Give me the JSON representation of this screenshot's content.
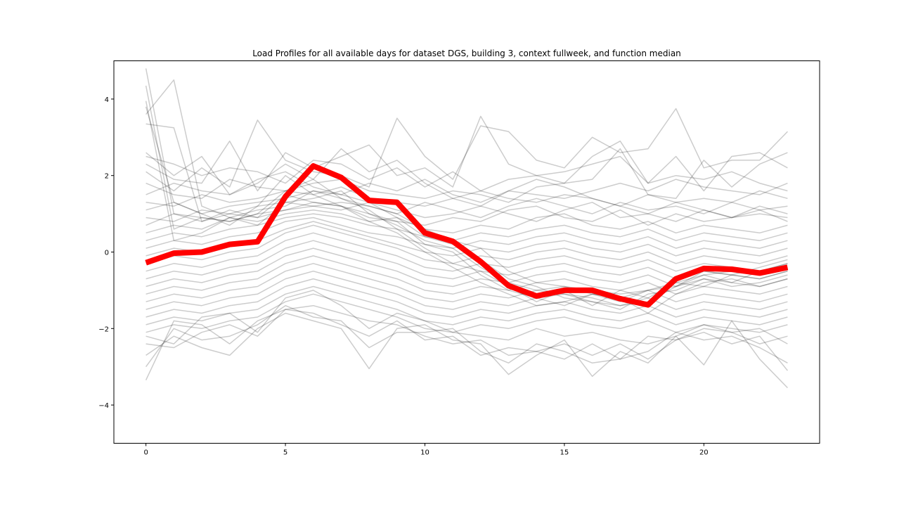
{
  "chart_data": {
    "type": "line",
    "title": "Load Profiles for all available days for dataset DGS, building 3, context fullweek, and function median",
    "xlabel": "",
    "ylabel": "",
    "xlim": [
      -1.15,
      24.15
    ],
    "ylim": [
      -5,
      5
    ],
    "x_ticks": [
      0,
      5,
      10,
      15,
      20
    ],
    "x_tick_labels": [
      "0",
      "5",
      "10",
      "15",
      "20"
    ],
    "y_ticks": [
      4,
      2,
      0,
      -2,
      -4
    ],
    "y_tick_labels": [
      "4",
      "2",
      "0",
      "−2",
      "−4"
    ],
    "grid": false,
    "x": [
      0,
      1,
      2,
      3,
      4,
      5,
      6,
      7,
      8,
      9,
      10,
      11,
      12,
      13,
      14,
      15,
      16,
      17,
      18,
      19,
      20,
      21,
      22,
      23
    ],
    "series": [
      {
        "role": "median",
        "color": "#ff0000",
        "values": [
          -0.28,
          -0.03,
          0.0,
          0.2,
          0.27,
          1.45,
          2.25,
          1.95,
          1.35,
          1.3,
          0.5,
          0.28,
          -0.25,
          -0.88,
          -1.15,
          -1.0,
          -1.0,
          -1.22,
          -1.38,
          -0.7,
          -0.43,
          -0.45,
          -0.55,
          -0.4
        ]
      }
    ],
    "background_profiles": {
      "color": "#000000",
      "opacity": 0.2,
      "lines": [
        [
          4.8,
          1.0,
          0.8,
          1.1,
          0.9,
          1.5,
          1.3,
          1.2,
          0.9,
          0.8,
          0.2,
          0.0,
          -0.6,
          -1.0,
          -1.2,
          -1.4,
          -1.1,
          -1.3,
          -1.0,
          -0.9,
          -0.6,
          -0.8,
          -0.5,
          -0.3
        ],
        [
          4.35,
          0.6,
          0.9,
          0.8,
          1.0,
          1.6,
          1.9,
          1.4,
          1.1,
          0.6,
          0.1,
          -0.3,
          -0.5,
          -0.9,
          -1.3,
          -1.0,
          -1.4,
          -1.0,
          -1.2,
          -0.8,
          -0.9,
          -0.6,
          -0.7,
          -0.5
        ],
        [
          3.95,
          0.3,
          0.5,
          0.9,
          1.1,
          1.2,
          1.6,
          1.5,
          1.3,
          0.9,
          0.4,
          0.2,
          -0.2,
          -0.7,
          -0.9,
          -1.2,
          -1.3,
          -1.5,
          -1.1,
          -1.0,
          -0.7,
          -0.9,
          -0.8,
          -0.6
        ],
        [
          3.8,
          1.3,
          1.0,
          0.7,
          1.2,
          2.0,
          1.5,
          1.2,
          0.8,
          0.5,
          0.0,
          -0.4,
          -0.8,
          -1.1,
          -1.4,
          -1.3,
          -1.1,
          -1.2,
          -1.6,
          -1.1,
          -0.8,
          -0.7,
          -0.9,
          -0.7
        ],
        [
          3.6,
          4.5,
          1.2,
          0.9,
          0.7,
          1.3,
          1.4,
          1.6,
          1.0,
          0.7,
          0.3,
          0.1,
          -0.4,
          -0.8,
          -1.0,
          -1.1,
          -1.2,
          -1.4,
          -1.3,
          -0.9,
          -0.5,
          -0.6,
          -0.4,
          -0.2
        ],
        [
          3.35,
          3.25,
          0.8,
          1.0,
          0.9,
          1.1,
          1.2,
          1.3,
          1.2,
          1.0,
          0.6,
          0.3,
          0.1,
          -0.5,
          -0.8,
          -0.9,
          -1.0,
          -1.1,
          -1.0,
          -0.8,
          -0.6,
          -0.5,
          -0.6,
          -0.4
        ],
        [
          2.6,
          2.0,
          2.5,
          1.5,
          1.8,
          2.3,
          1.9,
          2.7,
          2.1,
          2.4,
          1.8,
          1.4,
          1.2,
          1.6,
          1.9,
          1.7,
          1.4,
          1.2,
          1.0,
          1.3,
          1.1,
          0.9,
          1.2,
          1.0
        ],
        [
          2.5,
          2.3,
          2.0,
          2.2,
          2.1,
          1.8,
          2.4,
          2.3,
          1.9,
          2.2,
          1.7,
          2.1,
          1.6,
          1.9,
          2.0,
          2.1,
          2.3,
          2.5,
          1.8,
          2.0,
          1.9,
          2.1,
          1.8,
          1.6
        ],
        [
          2.3,
          1.9,
          1.8,
          2.9,
          1.6,
          2.6,
          2.2,
          2.5,
          2.8,
          2.0,
          2.2,
          1.7,
          3.55,
          2.3,
          2.0,
          1.8,
          2.5,
          2.9,
          1.8,
          2.5,
          1.6,
          2.5,
          2.6,
          2.2
        ],
        [
          2.1,
          1.6,
          2.2,
          1.7,
          3.45,
          2.4,
          2.1,
          2.0,
          1.7,
          3.5,
          2.5,
          1.9,
          3.3,
          3.15,
          2.4,
          2.2,
          3.0,
          2.6,
          2.7,
          3.75,
          2.2,
          2.4,
          2.4,
          3.15
        ],
        [
          1.8,
          1.5,
          1.4,
          1.9,
          1.7,
          1.6,
          1.8,
          1.9,
          1.6,
          1.5,
          1.4,
          1.6,
          1.5,
          1.3,
          1.7,
          1.8,
          1.9,
          2.7,
          1.5,
          1.4,
          2.4,
          1.7,
          2.3,
          2.6
        ],
        [
          1.5,
          1.8,
          1.6,
          1.5,
          1.9,
          2.1,
          1.7,
          1.5,
          1.8,
          1.6,
          1.9,
          1.5,
          1.3,
          1.6,
          1.5,
          1.4,
          1.6,
          1.8,
          1.6,
          1.9,
          1.7,
          1.6,
          1.5,
          1.8
        ],
        [
          1.3,
          1.2,
          1.5,
          1.3,
          1.4,
          1.6,
          1.5,
          1.7,
          1.4,
          1.3,
          1.2,
          1.4,
          1.6,
          1.4,
          1.3,
          1.5,
          1.4,
          1.2,
          1.5,
          1.3,
          1.4,
          1.3,
          1.6,
          1.4
        ],
        [
          1.1,
          1.3,
          1.0,
          1.2,
          1.3,
          1.4,
          1.6,
          1.4,
          1.2,
          1.0,
          1.3,
          1.1,
          0.9,
          1.2,
          1.4,
          1.2,
          1.0,
          1.3,
          1.1,
          1.2,
          1.0,
          1.3,
          1.1,
          1.2
        ],
        [
          0.9,
          0.8,
          1.1,
          1.0,
          1.2,
          1.3,
          1.2,
          1.1,
          1.3,
          1.1,
          0.9,
          1.0,
          1.2,
          1.0,
          0.8,
          1.1,
          1.3,
          0.9,
          1.0,
          0.8,
          1.1,
          0.9,
          1.0,
          0.9
        ],
        [
          0.7,
          1.0,
          0.9,
          0.8,
          1.0,
          1.1,
          1.3,
          1.2,
          1.0,
          0.8,
          0.7,
          0.9,
          0.8,
          1.1,
          1.2,
          0.9,
          0.8,
          1.1,
          0.7,
          1.0,
          0.8,
          0.9,
          1.1,
          0.8
        ],
        [
          0.5,
          0.7,
          0.6,
          0.9,
          0.8,
          1.0,
          1.1,
          1.0,
          0.8,
          0.9,
          0.6,
          0.5,
          0.7,
          0.6,
          0.9,
          1.0,
          0.7,
          0.6,
          0.8,
          0.5,
          0.7,
          0.6,
          0.5,
          0.7
        ],
        [
          0.3,
          0.5,
          0.4,
          0.6,
          0.7,
          0.9,
          1.0,
          0.9,
          0.7,
          0.6,
          0.4,
          0.3,
          0.5,
          0.4,
          0.6,
          0.7,
          0.5,
          0.4,
          0.6,
          0.3,
          0.5,
          0.4,
          0.3,
          0.5
        ],
        [
          0.1,
          0.3,
          0.2,
          0.4,
          0.5,
          0.8,
          0.9,
          0.7,
          0.5,
          0.4,
          0.2,
          0.1,
          0.3,
          0.2,
          0.4,
          0.5,
          0.3,
          0.2,
          0.4,
          0.1,
          0.3,
          0.2,
          0.1,
          0.3
        ],
        [
          -0.1,
          0.1,
          0.0,
          0.2,
          0.3,
          0.6,
          0.8,
          0.6,
          0.4,
          0.2,
          0.0,
          -0.1,
          0.1,
          0.0,
          0.2,
          0.3,
          0.1,
          0.0,
          0.2,
          -0.1,
          0.1,
          0.0,
          -0.1,
          0.1
        ],
        [
          -0.3,
          -0.1,
          -0.2,
          0.0,
          0.1,
          0.5,
          0.7,
          0.5,
          0.3,
          0.1,
          -0.2,
          -0.3,
          -0.1,
          -0.2,
          0.0,
          0.1,
          -0.1,
          -0.2,
          0.0,
          -0.3,
          -0.1,
          -0.2,
          -0.3,
          -0.1
        ],
        [
          -0.5,
          -0.3,
          -0.4,
          -0.2,
          -0.1,
          0.3,
          0.5,
          0.3,
          0.1,
          -0.1,
          -0.4,
          -0.5,
          -0.3,
          -0.4,
          -0.2,
          -0.1,
          -0.3,
          -0.4,
          -0.2,
          -0.5,
          -0.3,
          -0.4,
          -0.5,
          -0.3
        ],
        [
          -0.7,
          -0.5,
          -0.6,
          -0.4,
          -0.3,
          0.1,
          0.3,
          0.1,
          -0.1,
          -0.3,
          -0.6,
          -0.7,
          -0.5,
          -0.6,
          -0.4,
          -0.3,
          -0.5,
          -0.6,
          -0.4,
          -0.7,
          -0.5,
          -0.6,
          -0.7,
          -0.5
        ],
        [
          -0.9,
          -0.7,
          -0.8,
          -0.6,
          -0.5,
          -0.1,
          0.1,
          -0.1,
          -0.3,
          -0.5,
          -0.8,
          -0.9,
          -0.7,
          -0.8,
          -0.6,
          -0.5,
          -0.7,
          -0.8,
          -0.6,
          -0.9,
          -0.7,
          -0.8,
          -0.9,
          -0.7
        ],
        [
          -1.1,
          -0.9,
          -1.0,
          -0.8,
          -0.7,
          -0.3,
          -0.1,
          -0.3,
          -0.5,
          -0.7,
          -1.0,
          -1.1,
          -0.9,
          -1.0,
          -0.8,
          -0.7,
          -0.9,
          -1.0,
          -0.8,
          -1.1,
          -0.9,
          -1.0,
          -1.1,
          -0.9
        ],
        [
          -1.3,
          -1.1,
          -1.2,
          -1.0,
          -0.9,
          -0.5,
          -0.3,
          -0.5,
          -0.7,
          -0.9,
          -1.2,
          -1.3,
          -1.1,
          -1.2,
          -1.0,
          -0.9,
          -1.1,
          -1.2,
          -1.0,
          -1.3,
          -1.1,
          -1.2,
          -1.3,
          -1.1
        ],
        [
          -1.5,
          -1.3,
          -1.4,
          -1.2,
          -1.1,
          -0.7,
          -0.5,
          -0.7,
          -0.9,
          -1.1,
          -1.4,
          -1.5,
          -1.3,
          -1.4,
          -1.2,
          -1.1,
          -1.3,
          -1.4,
          -1.2,
          -1.5,
          -1.3,
          -1.4,
          -1.5,
          -1.3
        ],
        [
          -1.7,
          -1.5,
          -1.6,
          -1.4,
          -1.3,
          -0.9,
          -0.7,
          -0.9,
          -1.1,
          -1.3,
          -1.6,
          -1.7,
          -1.5,
          -1.6,
          -1.4,
          -1.3,
          -1.5,
          -1.6,
          -1.4,
          -1.7,
          -1.5,
          -1.6,
          -1.7,
          -1.5
        ],
        [
          -1.9,
          -1.7,
          -1.8,
          -1.6,
          -1.5,
          -1.1,
          -0.9,
          -1.1,
          -1.3,
          -1.5,
          -1.8,
          -1.9,
          -1.7,
          -1.8,
          -1.6,
          -1.5,
          -1.7,
          -1.8,
          -1.6,
          -1.9,
          -1.7,
          -1.8,
          -1.9,
          -1.7
        ],
        [
          -2.1,
          -1.9,
          -2.0,
          -1.8,
          -1.7,
          -1.3,
          -1.1,
          -1.3,
          -1.5,
          -1.7,
          -2.0,
          -2.1,
          -1.9,
          -2.0,
          -1.8,
          -1.7,
          -1.9,
          -2.0,
          -1.8,
          -2.1,
          -1.9,
          -2.0,
          -2.1,
          -1.9
        ],
        [
          -2.4,
          -2.5,
          -2.1,
          -1.9,
          -2.2,
          -1.5,
          -1.4,
          -1.6,
          -1.8,
          -1.9,
          -2.2,
          -2.4,
          -2.3,
          -2.7,
          -2.6,
          -2.8,
          -2.4,
          -2.8,
          -2.2,
          -2.3,
          -2.0,
          -2.1,
          -2.4,
          -2.2
        ],
        [
          -2.7,
          -2.2,
          -2.5,
          -2.7,
          -2.0,
          -1.6,
          -1.8,
          -2.0,
          -3.05,
          -2.0,
          -1.9,
          -2.3,
          -2.4,
          -3.2,
          -2.7,
          -2.3,
          -3.25,
          -2.6,
          -2.9,
          -2.2,
          -2.95,
          -1.8,
          -2.8,
          -3.55
        ],
        [
          -3.0,
          -2.0,
          -2.3,
          -2.2,
          -1.9,
          -1.4,
          -1.7,
          -1.8,
          -2.5,
          -2.1,
          -2.1,
          -2.0,
          -2.6,
          -2.9,
          -2.4,
          -2.6,
          -2.9,
          -2.8,
          -2.6,
          -2.1,
          -2.3,
          -2.2,
          -2.5,
          -2.9
        ],
        [
          -3.35,
          -1.8,
          -1.9,
          -2.4,
          -1.8,
          -1.5,
          -1.6,
          -1.9,
          -2.2,
          -1.8,
          -2.3,
          -2.2,
          -2.7,
          -2.5,
          -2.6,
          -2.4,
          -2.7,
          -2.4,
          -2.8,
          -2.3,
          -2.1,
          -2.4,
          -2.2,
          -3.1
        ],
        [
          -2.2,
          -2.4,
          -1.7,
          -1.6,
          -2.1,
          -1.2,
          -1.0,
          -1.4,
          -2.0,
          -1.6,
          -1.8,
          -2.1,
          -2.2,
          -2.3,
          -2.0,
          -2.2,
          -2.1,
          -2.3,
          -2.4,
          -2.2,
          -1.9,
          -2.1,
          -2.0,
          -2.4
        ]
      ]
    }
  }
}
